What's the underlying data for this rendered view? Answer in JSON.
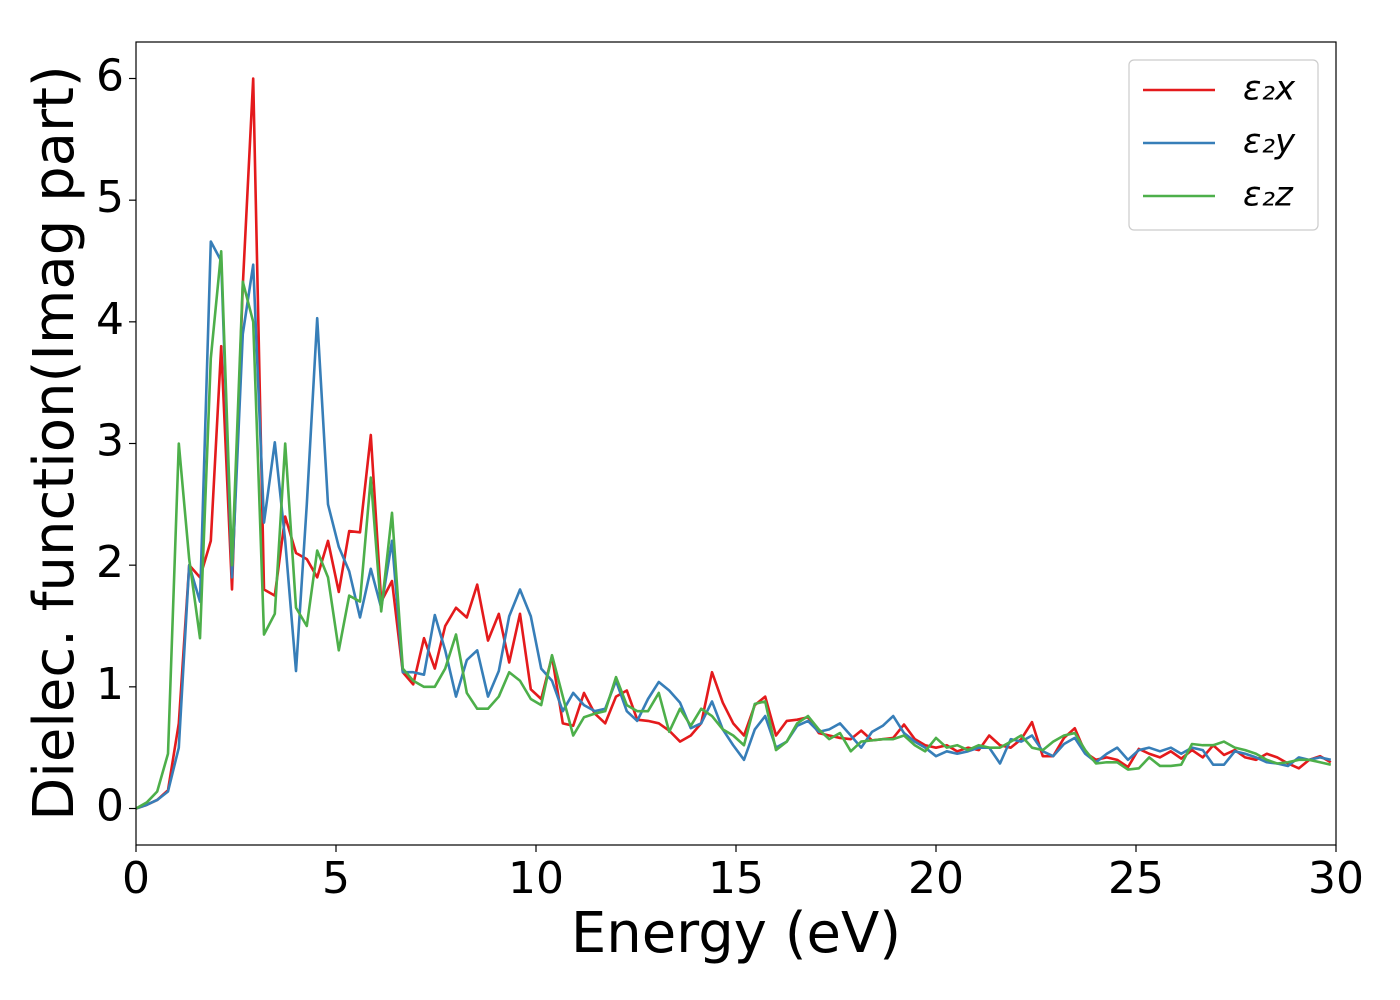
{
  "chart_data": {
    "type": "line",
    "xlabel": "Energy (eV)",
    "ylabel": "Dielec. function(Imag part)",
    "xlim": [
      0,
      30
    ],
    "ylim": [
      -0.3,
      6.3
    ],
    "xticks": [
      0,
      5,
      10,
      15,
      20,
      25,
      30
    ],
    "yticks": [
      0,
      1,
      2,
      3,
      4,
      5,
      6
    ],
    "legend": "upper right",
    "x": [
      0,
      0.27,
      0.53,
      0.8,
      1.07,
      1.33,
      1.6,
      1.87,
      2.13,
      2.4,
      2.67,
      2.93,
      3.2,
      3.47,
      3.73,
      4,
      4.27,
      4.53,
      4.8,
      5.07,
      5.33,
      5.6,
      5.87,
      6.13,
      6.4,
      6.67,
      6.93,
      7.2,
      7.47,
      7.73,
      8,
      8.27,
      8.53,
      8.8,
      9.07,
      9.33,
      9.6,
      9.87,
      10.13,
      10.4,
      10.67,
      10.93,
      11.2,
      11.47,
      11.73,
      12,
      12.27,
      12.53,
      12.8,
      13.07,
      13.33,
      13.6,
      13.87,
      14.13,
      14.4,
      14.67,
      14.93,
      15.2,
      15.47,
      15.73,
      16,
      16.27,
      16.53,
      16.8,
      17.07,
      17.33,
      17.6,
      17.87,
      18.13,
      18.4,
      18.67,
      18.93,
      19.2,
      19.47,
      19.73,
      20,
      20.27,
      20.53,
      20.8,
      21.07,
      21.33,
      21.6,
      21.87,
      22.13,
      22.4,
      22.67,
      22.93,
      23.2,
      23.47,
      23.73,
      24,
      24.27,
      24.53,
      24.8,
      25.07,
      25.33,
      25.6,
      25.87,
      26.13,
      26.4,
      26.67,
      26.93,
      27.2,
      27.47,
      27.73,
      28,
      28.27,
      28.53,
      28.8,
      29.07,
      29.33,
      29.6,
      29.87
    ],
    "series": [
      {
        "name": "ε₂x",
        "color": "#e41a1c",
        "values": [
          0,
          0.03,
          0.07,
          0.15,
          0.7,
          2.0,
          1.9,
          2.2,
          3.8,
          1.8,
          4.3,
          6.0,
          1.8,
          1.75,
          2.4,
          2.1,
          2.05,
          1.9,
          2.2,
          1.78,
          2.28,
          2.27,
          3.07,
          1.7,
          1.87,
          1.12,
          1.02,
          1.4,
          1.15,
          1.5,
          1.65,
          1.57,
          1.84,
          1.38,
          1.6,
          1.2,
          1.6,
          0.98,
          0.9,
          1.25,
          0.7,
          0.68,
          0.95,
          0.78,
          0.7,
          0.92,
          0.97,
          0.73,
          0.72,
          0.7,
          0.64,
          0.55,
          0.6,
          0.7,
          1.12,
          0.87,
          0.7,
          0.6,
          0.85,
          0.92,
          0.6,
          0.72,
          0.73,
          0.75,
          0.62,
          0.6,
          0.58,
          0.57,
          0.64,
          0.56,
          0.57,
          0.58,
          0.69,
          0.57,
          0.52,
          0.5,
          0.52,
          0.47,
          0.5,
          0.48,
          0.6,
          0.52,
          0.5,
          0.57,
          0.71,
          0.43,
          0.43,
          0.58,
          0.66,
          0.46,
          0.4,
          0.42,
          0.4,
          0.34,
          0.49,
          0.45,
          0.42,
          0.47,
          0.41,
          0.48,
          0.42,
          0.52,
          0.44,
          0.48,
          0.42,
          0.4,
          0.45,
          0.42,
          0.37,
          0.33,
          0.4,
          0.43,
          0.38
        ]
      },
      {
        "name": "ε₂y",
        "color": "#377eb8",
        "values": [
          0,
          0.03,
          0.07,
          0.14,
          0.5,
          2.0,
          1.7,
          4.66,
          4.5,
          1.9,
          3.9,
          4.47,
          2.35,
          3.01,
          2.2,
          1.13,
          2.5,
          4.03,
          2.5,
          2.15,
          1.95,
          1.57,
          1.97,
          1.65,
          2.2,
          1.12,
          1.12,
          1.1,
          1.59,
          1.3,
          0.92,
          1.22,
          1.3,
          0.92,
          1.13,
          1.58,
          1.8,
          1.58,
          1.15,
          1.05,
          0.8,
          0.95,
          0.85,
          0.8,
          0.82,
          1.05,
          0.8,
          0.72,
          0.9,
          1.04,
          0.97,
          0.87,
          0.66,
          0.7,
          0.88,
          0.65,
          0.52,
          0.4,
          0.65,
          0.76,
          0.5,
          0.55,
          0.68,
          0.72,
          0.63,
          0.65,
          0.7,
          0.6,
          0.5,
          0.63,
          0.68,
          0.76,
          0.62,
          0.55,
          0.5,
          0.43,
          0.47,
          0.45,
          0.47,
          0.5,
          0.5,
          0.37,
          0.57,
          0.55,
          0.6,
          0.47,
          0.43,
          0.53,
          0.58,
          0.45,
          0.38,
          0.45,
          0.5,
          0.4,
          0.48,
          0.5,
          0.47,
          0.5,
          0.45,
          0.5,
          0.48,
          0.36,
          0.36,
          0.47,
          0.45,
          0.42,
          0.38,
          0.37,
          0.35,
          0.42,
          0.4,
          0.42,
          0.4
        ]
      },
      {
        "name": "ε₂z",
        "color": "#4daf4a",
        "values": [
          0,
          0.05,
          0.14,
          0.45,
          3.0,
          2.05,
          1.4,
          3.7,
          4.58,
          2.0,
          4.33,
          4.0,
          1.43,
          1.6,
          3.0,
          1.65,
          1.5,
          2.12,
          1.9,
          1.3,
          1.75,
          1.7,
          2.72,
          1.62,
          2.43,
          1.15,
          1.05,
          1.0,
          1.0,
          1.15,
          1.43,
          0.95,
          0.82,
          0.82,
          0.92,
          1.12,
          1.05,
          0.9,
          0.85,
          1.26,
          0.92,
          0.6,
          0.75,
          0.78,
          0.8,
          1.08,
          0.85,
          0.8,
          0.8,
          0.95,
          0.63,
          0.82,
          0.68,
          0.82,
          0.76,
          0.65,
          0.6,
          0.52,
          0.86,
          0.88,
          0.48,
          0.55,
          0.7,
          0.76,
          0.65,
          0.57,
          0.62,
          0.47,
          0.55,
          0.56,
          0.57,
          0.57,
          0.6,
          0.52,
          0.47,
          0.58,
          0.5,
          0.52,
          0.48,
          0.52,
          0.5,
          0.5,
          0.55,
          0.6,
          0.5,
          0.48,
          0.55,
          0.6,
          0.62,
          0.48,
          0.37,
          0.38,
          0.38,
          0.32,
          0.33,
          0.42,
          0.35,
          0.35,
          0.36,
          0.53,
          0.52,
          0.52,
          0.55,
          0.5,
          0.48,
          0.45,
          0.4,
          0.37,
          0.38,
          0.4,
          0.4,
          0.38,
          0.36
        ]
      }
    ]
  }
}
